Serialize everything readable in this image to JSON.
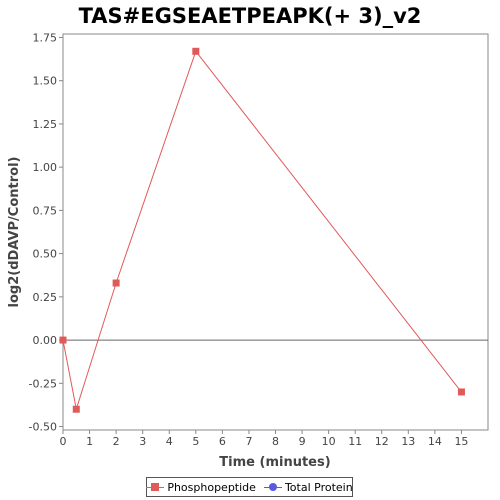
{
  "chart_data": {
    "type": "line",
    "title": "TAS#EGSEAETPEAPK(+ 3)_v2",
    "xlabel": "Time (minutes)",
    "ylabel": "log2(dDAVP/Control)",
    "xlim": [
      0,
      16
    ],
    "ylim": [
      -0.52,
      1.77
    ],
    "x_ticks": [
      0,
      1,
      2,
      3,
      4,
      5,
      6,
      7,
      8,
      9,
      10,
      11,
      12,
      13,
      14,
      15
    ],
    "y_ticks": [
      -0.5,
      -0.25,
      0,
      0.25,
      0.5,
      0.75,
      1,
      1.25,
      1.5,
      1.75
    ],
    "y_tick_labels": [
      "-0.50",
      "-0.25",
      "0.00",
      "0.25",
      "0.50",
      "0.75",
      "1.00",
      "1.25",
      "1.50",
      "1.75"
    ],
    "zero_line": 0,
    "grid": false,
    "legend_position": "bottom",
    "series": [
      {
        "name": "Phosphopeptide",
        "color": "#e05a5a",
        "marker": "square",
        "x": [
          0,
          0.5,
          2,
          5,
          15
        ],
        "y": [
          0.0,
          -0.4,
          0.33,
          1.67,
          -0.3
        ]
      },
      {
        "name": "Total Protein",
        "color": "#5a5ae0",
        "marker": "circle",
        "x": [],
        "y": []
      }
    ]
  }
}
